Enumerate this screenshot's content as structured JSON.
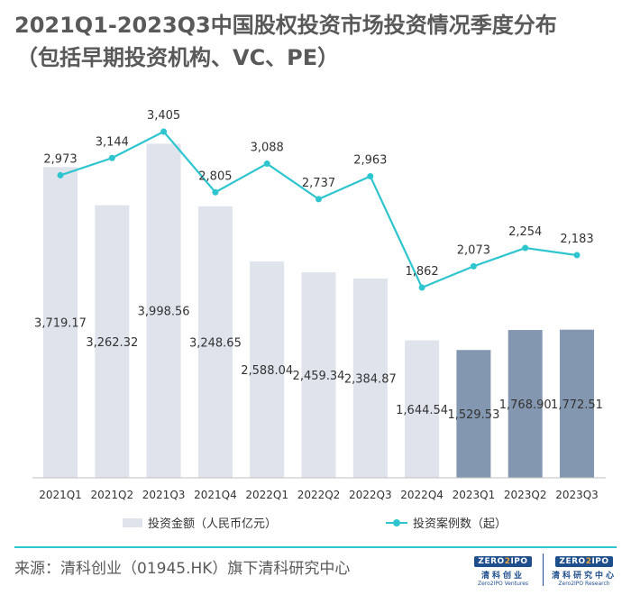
{
  "title_line1": "2021Q1-2023Q3中国股权投资市场投资情况季度分布",
  "title_line2": "（包括早期投资机构、VC、PE）",
  "legend": {
    "bar_label": "投资金额（人民币亿元）",
    "line_label": "投资案例数（起）"
  },
  "source": "来源：清科创业（01945.HK）旗下清科研究中心",
  "logos": {
    "left": {
      "mark_a": "ZERO",
      "mark_b": "2",
      "mark_c": "IPO",
      "cn": "清科创业",
      "en": "Zero2IPO Ventures"
    },
    "right": {
      "mark_a": "ZERO",
      "mark_b": "2",
      "mark_c": "IPO",
      "cn": "清科研究中心",
      "en": "Zero2IPO Research"
    }
  },
  "chart_data": {
    "type": "bar",
    "categories": [
      "2021Q1",
      "2021Q2",
      "2021Q3",
      "2021Q4",
      "2022Q1",
      "2022Q2",
      "2022Q3",
      "2022Q4",
      "2023Q1",
      "2023Q2",
      "2023Q3"
    ],
    "series": [
      {
        "name": "投资金额（人民币亿元）",
        "type": "bar",
        "values": [
          3719.17,
          3262.32,
          3998.56,
          3248.65,
          2588.04,
          2459.34,
          2384.87,
          1644.54,
          1529.53,
          1768.9,
          1772.51
        ],
        "labels": [
          "3,719.17",
          "3,262.32",
          "3,998.56",
          "3,248.65",
          "2,588.04",
          "2,459.34",
          "2,384.87",
          "1,644.54",
          "1,529.53",
          "1,768.90",
          "1,772.51"
        ]
      },
      {
        "name": "投资案例数（起）",
        "type": "line",
        "values": [
          2973,
          3144,
          3405,
          2805,
          3088,
          2737,
          2963,
          1862,
          2073,
          2254,
          2183
        ],
        "labels": [
          "2,973",
          "3,144",
          "3,405",
          "2,805",
          "3,088",
          "2,737",
          "2,963",
          "1,862",
          "2,073",
          "2,254",
          "2,183"
        ]
      }
    ],
    "colors": {
      "bar": "#dfe3ec",
      "bar_highlight": "#8497b0",
      "line": "#2ec5cf"
    },
    "highlighted_categories": [
      "2023Q1",
      "2023Q2",
      "2023Q3"
    ],
    "grid": false
  }
}
